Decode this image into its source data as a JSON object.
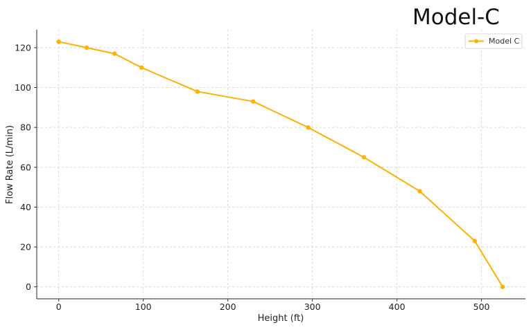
{
  "chart_data": {
    "type": "line",
    "title": "Model-C",
    "xlabel": "Height (ft)",
    "ylabel": "Flow Rate (L/min)",
    "xlim": [
      -26,
      552
    ],
    "ylim": [
      -6,
      129
    ],
    "xticks": [
      0,
      100,
      200,
      300,
      400,
      500
    ],
    "yticks": [
      0,
      20,
      40,
      60,
      80,
      100,
      120
    ],
    "grid": true,
    "legend_position": "top-right",
    "series": [
      {
        "name": "Model C",
        "color": "#FFB000",
        "x": [
          0,
          33,
          66,
          98,
          164,
          230,
          295,
          361,
          427,
          492,
          525
        ],
        "y": [
          123,
          120,
          117,
          110,
          98,
          93,
          80,
          65,
          48,
          23,
          0
        ]
      }
    ]
  }
}
